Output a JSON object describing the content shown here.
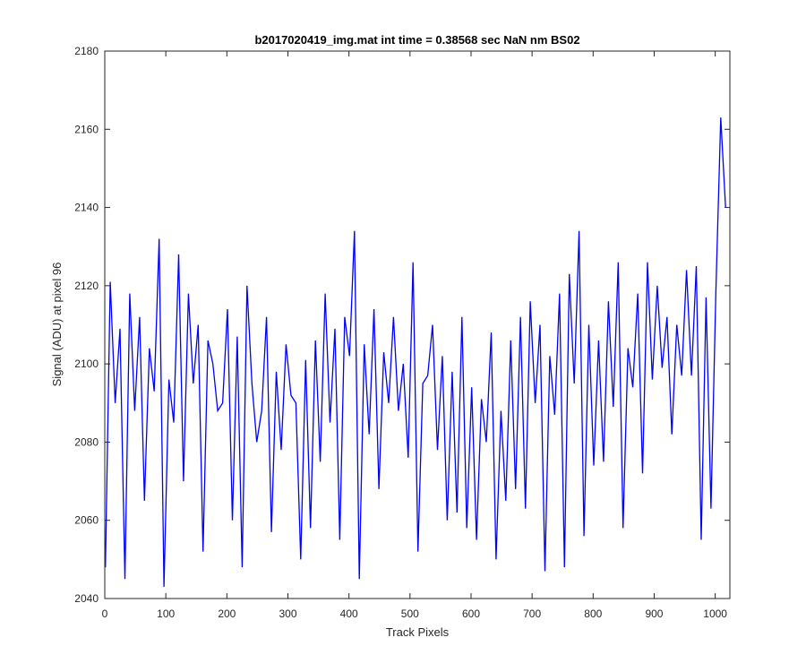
{
  "chart_data": {
    "type": "line",
    "title": "b2017020419_img.mat int time = 0.38568 sec  NaN nm BS02",
    "xlabel": "Track Pixels",
    "ylabel": "Signal (ADU) at pixel 96",
    "xlim": [
      0,
      1024
    ],
    "ylim": [
      2040,
      2180
    ],
    "xticks": [
      0,
      100,
      200,
      300,
      400,
      500,
      600,
      700,
      800,
      900,
      1000
    ],
    "yticks": [
      2040,
      2060,
      2080,
      2100,
      2120,
      2140,
      2160,
      2180
    ],
    "xtick_labels": [
      "0",
      "100",
      "200",
      "300",
      "400",
      "500",
      "600",
      "700",
      "800",
      "900",
      "1000"
    ],
    "ytick_labels": [
      "2040",
      "2060",
      "2080",
      "2100",
      "2120",
      "2140",
      "2160",
      "2180"
    ],
    "grid": false,
    "line_color": "#0000ff",
    "series": [
      {
        "x_start": 1,
        "x_step": 16,
        "values": [
          2048,
          2090,
          2045,
          2088,
          2065,
          2093,
          2043,
          2085,
          2070,
          2095,
          2052,
          2100,
          2090,
          2060,
          2048,
          2095,
          2088,
          2057,
          2078,
          2092,
          2050,
          2058,
          2075,
          2085,
          2055,
          2102,
          2045,
          2082,
          2068,
          2090,
          2088,
          2076,
          2052,
          2097,
          2078,
          2060,
          2062,
          2058,
          2055,
          2080,
          2050,
          2065,
          2068,
          2063,
          2090,
          2047,
          2087,
          2048,
          2095,
          2056,
          2074,
          2075,
          2089,
          2058,
          2094,
          2072,
          2096,
          2099,
          2082,
          2097,
          2097,
          2055,
          2063,
          2163
        ]
      },
      {
        "x_start": 9,
        "x_step": 16,
        "values": [
          2121,
          2109,
          2118,
          2112,
          2104,
          2132,
          2096,
          2128,
          2118,
          2110,
          2106,
          2088,
          2114,
          2107,
          2120,
          2080,
          2112,
          2098,
          2105,
          2090,
          2101,
          2106,
          2118,
          2109,
          2112,
          2134,
          2105,
          2114,
          2103,
          2112,
          2100,
          2126,
          2095,
          2110,
          2102,
          2098,
          2112,
          2094,
          2091,
          2108,
          2088,
          2106,
          2112,
          2116,
          2110,
          2102,
          2118,
          2123,
          2134,
          2110,
          2106,
          2116,
          2126,
          2104,
          2118,
          2126,
          2120,
          2112,
          2110,
          2124,
          2125,
          2117,
          2118,
          2140
        ]
      }
    ]
  }
}
